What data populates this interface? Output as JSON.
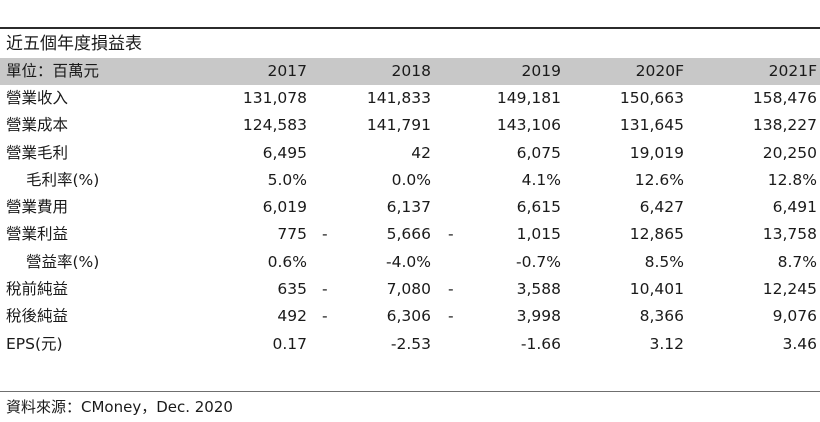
{
  "title": "近五個年度損益表",
  "header": {
    "unit_label": "單位：百萬元",
    "years": [
      "2017",
      "2018",
      "2019",
      "2020F",
      "2021F"
    ]
  },
  "rows": [
    {
      "label": "營業收入",
      "indent": false,
      "values": [
        "131,078",
        "141,833",
        "149,181",
        "150,663",
        "158,476"
      ],
      "dashes": [
        "",
        ""
      ]
    },
    {
      "label": "營業成本",
      "indent": false,
      "values": [
        "124,583",
        "141,791",
        "143,106",
        "131,645",
        "138,227"
      ],
      "dashes": [
        "",
        ""
      ]
    },
    {
      "label": "營業毛利",
      "indent": false,
      "values": [
        "6,495",
        "42",
        "6,075",
        "19,019",
        "20,250"
      ],
      "dashes": [
        "",
        ""
      ]
    },
    {
      "label": "毛利率(%)",
      "indent": true,
      "values": [
        "5.0%",
        "0.0%",
        "4.1%",
        "12.6%",
        "12.8%"
      ],
      "dashes": [
        "",
        ""
      ]
    },
    {
      "label": "營業費用",
      "indent": false,
      "values": [
        "6,019",
        "6,137",
        "6,615",
        "6,427",
        "6,491"
      ],
      "dashes": [
        "",
        ""
      ]
    },
    {
      "label": "營業利益",
      "indent": false,
      "values": [
        "775",
        "5,666",
        "1,015",
        "12,865",
        "13,758"
      ],
      "dashes": [
        "-",
        "-"
      ]
    },
    {
      "label": "營益率(%)",
      "indent": true,
      "values": [
        "0.6%",
        "-4.0%",
        "-0.7%",
        "8.5%",
        "8.7%"
      ],
      "dashes": [
        "",
        ""
      ]
    },
    {
      "label": "稅前純益",
      "indent": false,
      "values": [
        "635",
        "7,080",
        "3,588",
        "10,401",
        "12,245"
      ],
      "dashes": [
        "-",
        "-"
      ]
    },
    {
      "label": "稅後純益",
      "indent": false,
      "values": [
        "492",
        "6,306",
        "3,998",
        "8,366",
        "9,076"
      ],
      "dashes": [
        "-",
        "-"
      ]
    },
    {
      "label": "EPS(元)",
      "indent": false,
      "values": [
        "0.17",
        "-2.53",
        "-1.66",
        "3.12",
        "3.46"
      ],
      "dashes": [
        "",
        ""
      ]
    }
  ],
  "source": "資料來源：CMoney，Dec. 2020"
}
